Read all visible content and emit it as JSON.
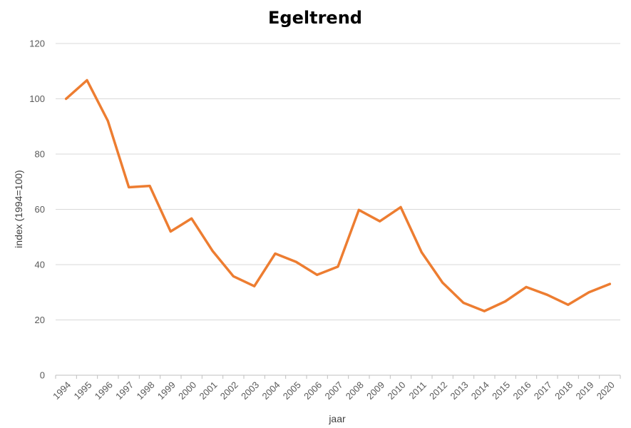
{
  "chart_data": {
    "type": "line",
    "title": "Egeltrend",
    "xlabel": "jaar",
    "ylabel": "index (1994=100)",
    "ylim": [
      0,
      120
    ],
    "yticks": [
      0,
      20,
      40,
      60,
      80,
      100,
      120
    ],
    "grid": true,
    "legend": "none",
    "categories": [
      "1994",
      "1995",
      "1996",
      "1997",
      "1998",
      "1999",
      "2000",
      "2001",
      "2002",
      "2003",
      "2004",
      "2005",
      "2006",
      "2007",
      "2008",
      "2009",
      "2010",
      "2011",
      "2012",
      "2013",
      "2014",
      "2015",
      "2016",
      "2017",
      "2018",
      "2019",
      "2020"
    ],
    "series": [
      {
        "color": "#ED7D31",
        "values": [
          100,
          106.7,
          92,
          68,
          68.5,
          52,
          56.7,
          45,
          35.8,
          32.2,
          44,
          41,
          36.3,
          39.3,
          59.8,
          55.7,
          60.8,
          44.5,
          33.5,
          26.2,
          23.2,
          26.7,
          31.9,
          29.1,
          25.5,
          30,
          33
        ]
      }
    ]
  }
}
